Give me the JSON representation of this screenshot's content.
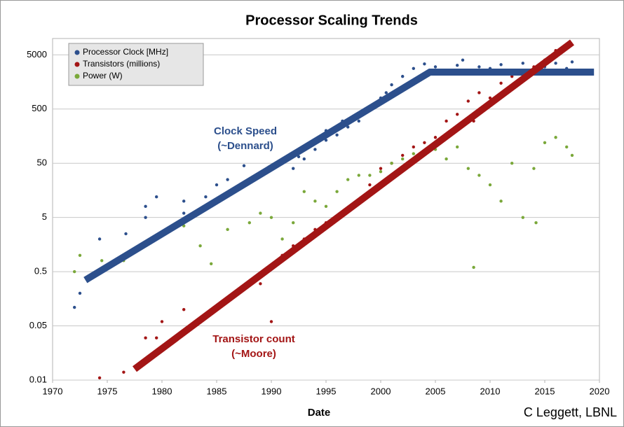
{
  "chart_data": {
    "type": "scatter",
    "title": "Processor Scaling Trends",
    "x_label": "Date",
    "credit": "C Leggett, LBNL",
    "log_y": true,
    "grid": true,
    "legend": "upper left",
    "xlim": [
      1970,
      2020
    ],
    "xticks": [
      1970,
      1975,
      1980,
      1985,
      1990,
      1995,
      2000,
      2005,
      2010,
      2015,
      2020
    ],
    "ylim": [
      0.005,
      10000
    ],
    "yticks": [
      {
        "value": 0.005,
        "label": "0.01"
      },
      0.05,
      0.5,
      5,
      50,
      500,
      5000
    ],
    "series": [
      {
        "name": "Processor Clock [MHz]",
        "color": "#2c4f8c",
        "x": [
          1972,
          1972.5,
          1974.3,
          1976.7,
          1978.5,
          1978.5,
          1979.5,
          1982,
          1982,
          1984,
          1985,
          1986,
          1987.5,
          1989,
          1990,
          1991,
          1992,
          1992.5,
          1993,
          1993,
          1994,
          1995,
          1995,
          1996,
          1996.5,
          1997,
          1998,
          1998.5,
          1999,
          1999.5,
          2000,
          2000.5,
          2001,
          2002,
          2003,
          2004,
          2005,
          2006,
          2007,
          2007.5,
          2008,
          2009,
          2010,
          2011,
          2012,
          2013,
          2014,
          2015,
          2016,
          2017,
          2017.5
        ],
        "values": [
          0.11,
          0.2,
          2,
          2.5,
          8,
          5,
          12,
          6,
          10,
          12,
          20,
          25,
          45,
          30,
          40,
          50,
          40,
          66,
          100,
          60,
          90,
          133,
          200,
          166,
          300,
          233,
          300,
          450,
          500,
          600,
          800,
          1000,
          1400,
          2000,
          2800,
          3400,
          3000,
          2600,
          3200,
          4000,
          2500,
          3000,
          2800,
          3300,
          2600,
          3500,
          2400,
          3000,
          3500,
          2800,
          3700
        ]
      },
      {
        "name": "Transistors (millions)",
        "color": "#a31515",
        "x": [
          1974.3,
          1976.5,
          1978.5,
          1979.5,
          1980,
          1982,
          1985,
          1987,
          1989,
          1990,
          1991,
          1992,
          1993,
          1994,
          1995,
          1996,
          1997,
          1998,
          1999,
          2000,
          2001,
          2002,
          2003,
          2004,
          2005,
          2006,
          2007,
          2008,
          2008.5,
          2009,
          2010,
          2011,
          2012,
          2013,
          2014,
          2015,
          2016,
          2017
        ],
        "values": [
          0.0055,
          0.007,
          0.03,
          0.03,
          0.06,
          0.1,
          0.1,
          0.2,
          0.3,
          0.06,
          1,
          1.5,
          2,
          3,
          4,
          5,
          7,
          10,
          20,
          40,
          50,
          70,
          100,
          120,
          150,
          300,
          400,
          700,
          300,
          1000,
          800,
          1500,
          2000,
          2500,
          3000,
          4000,
          6000,
          7000
        ]
      },
      {
        "name": "Power (W)",
        "color": "#7aa83a",
        "x": [
          1972,
          1972.5,
          1974.5,
          1976.5,
          1979.5,
          1982,
          1983.5,
          1984.5,
          1986,
          1988,
          1989,
          1990,
          1991,
          1992,
          1993,
          1994,
          1995,
          1996,
          1997,
          1998,
          1999,
          2000,
          2001,
          2002,
          2003,
          2004,
          2005,
          2006,
          2007,
          2008,
          2008.5,
          2009,
          2010,
          2011,
          2012,
          2013,
          2014,
          2014.2,
          2015,
          2016,
          2017,
          2017.5
        ],
        "values": [
          0.5,
          1,
          0.8,
          0.8,
          2,
          3.5,
          1.5,
          0.7,
          3,
          4,
          6,
          5,
          2,
          4,
          15,
          10,
          8,
          15,
          25,
          30,
          30,
          35,
          50,
          60,
          75,
          80,
          90,
          60,
          100,
          40,
          0.6,
          30,
          20,
          10,
          50,
          5,
          40,
          4,
          120,
          150,
          100,
          70
        ]
      }
    ],
    "trends": [
      {
        "color": "#2c4f8c",
        "label": [
          "Clock Speed",
          "(~Dennard)"
        ],
        "x": [
          1973,
          2004.5,
          2019.5
        ],
        "values": [
          0.35,
          2400,
          2400
        ]
      },
      {
        "color": "#a31515",
        "label": [
          "Transistor count",
          "(~Moore)"
        ],
        "x": [
          1977.5,
          2017.5
        ],
        "values": [
          0.008,
          8500
        ]
      }
    ]
  }
}
